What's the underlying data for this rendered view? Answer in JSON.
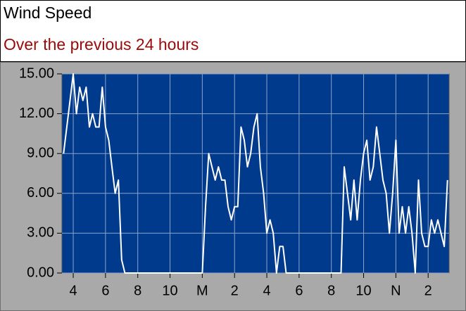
{
  "chart_data": {
    "type": "line",
    "title": "Wind Speed",
    "subtitle": "Over the previous 24  hours",
    "x": [
      15.4,
      15.6,
      15.8,
      16.0,
      16.2,
      16.4,
      16.6,
      16.8,
      17.0,
      17.2,
      17.4,
      17.6,
      17.8,
      18.0,
      18.2,
      18.4,
      18.6,
      18.8,
      19.0,
      19.2,
      24.0,
      24.2,
      24.4,
      24.6,
      24.8,
      25.0,
      25.2,
      25.4,
      25.6,
      25.8,
      26.0,
      26.2,
      26.4,
      26.6,
      26.8,
      27.0,
      27.2,
      27.4,
      27.6,
      27.8,
      28.0,
      28.2,
      28.4,
      28.6,
      28.8,
      29.0,
      29.2,
      32.6,
      32.8,
      33.0,
      33.2,
      33.4,
      33.6,
      33.8,
      34.0,
      34.2,
      34.4,
      34.6,
      34.8,
      35.0,
      35.2,
      35.4,
      35.6,
      35.8,
      36.0,
      36.2,
      36.4,
      36.6,
      36.8,
      37.0,
      37.2,
      37.4,
      37.6,
      37.8,
      38.0,
      38.2,
      38.4,
      38.6,
      38.8,
      39.0,
      39.2
    ],
    "values": [
      9,
      11,
      13,
      15,
      12,
      14,
      13,
      14,
      11,
      12,
      11,
      11,
      14,
      11,
      10,
      8,
      6,
      7,
      1,
      0,
      0,
      5,
      9,
      8,
      7,
      8,
      7,
      7,
      5,
      4,
      5,
      5,
      11,
      10,
      8,
      9,
      11,
      12,
      8,
      6,
      3,
      4,
      3,
      0,
      2,
      2,
      0,
      0,
      8,
      6,
      4,
      7,
      4,
      7,
      9,
      10,
      7,
      8,
      11,
      9,
      7,
      6,
      3,
      6,
      10,
      3,
      5,
      3,
      5,
      3,
      0,
      7,
      3,
      2,
      2,
      4,
      3,
      4,
      3,
      2,
      7
    ],
    "color": "#ffffff",
    "background": "#003a8c",
    "xlim": [
      15.3,
      39.3
    ],
    "xticks": [
      {
        "value": 16,
        "label": "4"
      },
      {
        "value": 18,
        "label": "6"
      },
      {
        "value": 20,
        "label": "8"
      },
      {
        "value": 22,
        "label": "10"
      },
      {
        "value": 24,
        "label": "M"
      },
      {
        "value": 26,
        "label": "2"
      },
      {
        "value": 28,
        "label": "4"
      },
      {
        "value": 30,
        "label": "6"
      },
      {
        "value": 32,
        "label": "8"
      },
      {
        "value": 34,
        "label": "10"
      },
      {
        "value": 36,
        "label": "N"
      },
      {
        "value": 38,
        "label": "2"
      }
    ],
    "ylim": [
      0,
      15
    ],
    "yticks": [
      {
        "value": 0,
        "label": "0.00"
      },
      {
        "value": 3,
        "label": "3.00"
      },
      {
        "value": 6,
        "label": "6.00"
      },
      {
        "value": 9,
        "label": "9.00"
      },
      {
        "value": 12,
        "label": "12.00"
      },
      {
        "value": 15,
        "label": "15.00"
      }
    ],
    "grid": true
  }
}
